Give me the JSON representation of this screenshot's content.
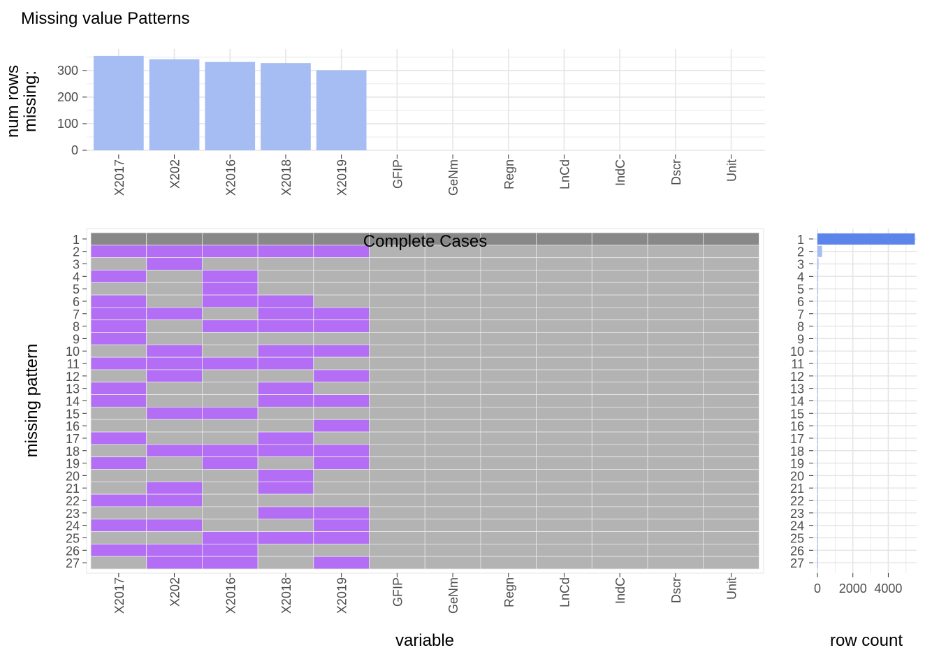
{
  "title": "Missing value Patterns",
  "colors": {
    "bar_top": "#a5bdf2",
    "bar_right_first": "#5b85ea",
    "bar_right_rest": "#a5bdf2",
    "missing": "#b46ef5",
    "present": "#b3b3b3",
    "complete": "#888888",
    "grid": "#e5e5e5",
    "tick_text": "#4d4d4d",
    "label_text": "#000000"
  },
  "chart_data": [
    {
      "type": "bar",
      "name": "top",
      "categories": [
        "X2017",
        "X202",
        "X2016",
        "X2018",
        "X2019",
        "GFIP",
        "GeNm",
        "Regn",
        "LnCd",
        "IndC",
        "Dscr",
        "Unit"
      ],
      "values": [
        355,
        342,
        332,
        328,
        301,
        0,
        0,
        0,
        0,
        0,
        0,
        0
      ],
      "ylabel": "num rows\nmissing:",
      "yticks": [
        0,
        100,
        200,
        300
      ],
      "ylim": [
        0,
        360
      ]
    },
    {
      "type": "heatmap",
      "name": "main",
      "variables": [
        "X2017",
        "X202",
        "X2016",
        "X2018",
        "X2019",
        "GFIP",
        "GeNm",
        "Regn",
        "LnCd",
        "IndC",
        "Dscr",
        "Unit"
      ],
      "patterns": [
        "1",
        "2",
        "3",
        "4",
        "5",
        "6",
        "7",
        "8",
        "9",
        "10",
        "11",
        "12",
        "13",
        "14",
        "15",
        "16",
        "17",
        "18",
        "19",
        "20",
        "21",
        "22",
        "23",
        "24",
        "25",
        "26",
        "27"
      ],
      "missing": [
        [
          0,
          0,
          0,
          0,
          0,
          0,
          0,
          0,
          0,
          0,
          0,
          0
        ],
        [
          1,
          1,
          1,
          1,
          1,
          0,
          0,
          0,
          0,
          0,
          0,
          0
        ],
        [
          0,
          1,
          0,
          0,
          0,
          0,
          0,
          0,
          0,
          0,
          0,
          0
        ],
        [
          1,
          0,
          1,
          0,
          0,
          0,
          0,
          0,
          0,
          0,
          0,
          0
        ],
        [
          0,
          0,
          1,
          0,
          0,
          0,
          0,
          0,
          0,
          0,
          0,
          0
        ],
        [
          1,
          0,
          1,
          1,
          0,
          0,
          0,
          0,
          0,
          0,
          0,
          0
        ],
        [
          1,
          1,
          0,
          1,
          1,
          0,
          0,
          0,
          0,
          0,
          0,
          0
        ],
        [
          1,
          0,
          1,
          1,
          1,
          0,
          0,
          0,
          0,
          0,
          0,
          0
        ],
        [
          1,
          0,
          0,
          0,
          0,
          0,
          0,
          0,
          0,
          0,
          0,
          0
        ],
        [
          0,
          1,
          0,
          1,
          1,
          0,
          0,
          0,
          0,
          0,
          0,
          0
        ],
        [
          1,
          1,
          1,
          1,
          0,
          0,
          0,
          0,
          0,
          0,
          0,
          0
        ],
        [
          0,
          1,
          0,
          0,
          1,
          0,
          0,
          0,
          0,
          0,
          0,
          0
        ],
        [
          1,
          0,
          0,
          1,
          0,
          0,
          0,
          0,
          0,
          0,
          0,
          0
        ],
        [
          1,
          0,
          0,
          1,
          1,
          0,
          0,
          0,
          0,
          0,
          0,
          0
        ],
        [
          0,
          1,
          1,
          0,
          0,
          0,
          0,
          0,
          0,
          0,
          0,
          0
        ],
        [
          0,
          0,
          0,
          0,
          1,
          0,
          0,
          0,
          0,
          0,
          0,
          0
        ],
        [
          1,
          0,
          0,
          1,
          0,
          0,
          0,
          0,
          0,
          0,
          0,
          0
        ],
        [
          0,
          1,
          1,
          1,
          1,
          0,
          0,
          0,
          0,
          0,
          0,
          0
        ],
        [
          1,
          0,
          1,
          0,
          1,
          0,
          0,
          0,
          0,
          0,
          0,
          0
        ],
        [
          0,
          0,
          0,
          1,
          0,
          0,
          0,
          0,
          0,
          0,
          0,
          0
        ],
        [
          0,
          1,
          0,
          1,
          0,
          0,
          0,
          0,
          0,
          0,
          0,
          0
        ],
        [
          1,
          1,
          0,
          0,
          0,
          0,
          0,
          0,
          0,
          0,
          0,
          0
        ],
        [
          0,
          0,
          0,
          1,
          1,
          0,
          0,
          0,
          0,
          0,
          0,
          0
        ],
        [
          1,
          1,
          0,
          0,
          1,
          0,
          0,
          0,
          0,
          0,
          0,
          0
        ],
        [
          0,
          0,
          1,
          1,
          1,
          0,
          0,
          0,
          0,
          0,
          0,
          0
        ],
        [
          1,
          1,
          1,
          0,
          0,
          0,
          0,
          0,
          0,
          0,
          0,
          0
        ],
        [
          0,
          1,
          1,
          0,
          1,
          0,
          0,
          0,
          0,
          0,
          0,
          0
        ]
      ],
      "complete_label": "Complete Cases",
      "xlabel": "variable",
      "ylabel": "missing pattern"
    },
    {
      "type": "bar",
      "name": "right",
      "orientation": "horizontal",
      "categories": [
        "1",
        "2",
        "3",
        "4",
        "5",
        "6",
        "7",
        "8",
        "9",
        "10",
        "11",
        "12",
        "13",
        "14",
        "15",
        "16",
        "17",
        "18",
        "19",
        "20",
        "21",
        "22",
        "23",
        "24",
        "25",
        "26",
        "27"
      ],
      "values": [
        5500,
        260,
        60,
        45,
        40,
        35,
        30,
        30,
        25,
        25,
        20,
        20,
        20,
        20,
        15,
        15,
        15,
        15,
        15,
        12,
        12,
        12,
        10,
        10,
        10,
        10,
        10
      ],
      "xlabel": "row count",
      "xticks": [
        0,
        2000,
        4000
      ],
      "xtick_labels": [
        "0",
        "2000",
        "4000"
      ],
      "xlim": [
        0,
        5600
      ]
    }
  ]
}
